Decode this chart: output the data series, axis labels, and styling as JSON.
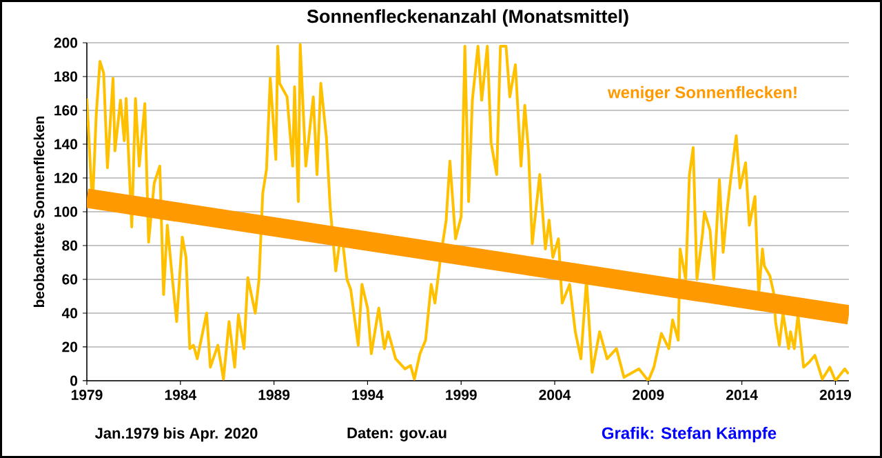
{
  "chart_data": {
    "type": "line",
    "title": "Sonnenfleckenanzahl (Monatsmittel)",
    "ylabel": "beobachtete Sonnenflecken",
    "xlim": [
      1979,
      2019.72
    ],
    "xticks": [
      1979,
      1984,
      1989,
      1994,
      1999,
      2004,
      2009,
      2014,
      2019
    ],
    "ylim": [
      0,
      200
    ],
    "yticks": [
      0,
      20,
      40,
      60,
      80,
      100,
      120,
      140,
      160,
      180,
      200
    ],
    "grid": "y",
    "marker": "none",
    "line_style": "solid",
    "series": [
      {
        "color": "#ffc000",
        "x": [
          1979.0,
          1979.3,
          1979.5,
          1979.7,
          1979.9,
          1980.1,
          1980.4,
          1980.5,
          1980.8,
          1981.0,
          1981.1,
          1981.4,
          1981.6,
          1981.8,
          1982.1,
          1982.3,
          1982.6,
          1982.9,
          1983.1,
          1983.3,
          1983.6,
          1983.8,
          1984.1,
          1984.3,
          1984.5,
          1984.7,
          1984.9,
          1985.4,
          1985.6,
          1986.0,
          1986.3,
          1986.6,
          1986.9,
          1987.1,
          1987.4,
          1987.6,
          1988.0,
          1988.2,
          1988.4,
          1988.6,
          1988.8,
          1989.1,
          1989.2,
          1989.3,
          1989.7,
          1990.0,
          1990.1,
          1990.3,
          1990.4,
          1990.7,
          1991.1,
          1991.3,
          1991.5,
          1991.8,
          1992.0,
          1992.3,
          1992.6,
          1992.9,
          1993.1,
          1993.5,
          1993.7,
          1994.0,
          1994.2,
          1994.6,
          1994.9,
          1995.1,
          1995.5,
          1996.0,
          1996.3,
          1996.5,
          1996.8,
          1997.1,
          1997.4,
          1997.6,
          1997.9,
          1998.2,
          1998.4,
          1998.7,
          1999.0,
          1999.2,
          1999.4,
          1999.6,
          1999.9,
          2000.1,
          2000.4,
          2000.6,
          2000.9,
          2001.1,
          2001.4,
          2001.6,
          2001.9,
          2002.2,
          2002.4,
          2002.6,
          2002.8,
          2003.2,
          2003.5,
          2003.7,
          2003.9,
          2004.2,
          2004.4,
          2004.8,
          2005.1,
          2005.4,
          2005.7,
          2006.0,
          2006.4,
          2006.8,
          2007.3,
          2007.7,
          2008.5,
          2009.0,
          2009.3,
          2009.7,
          2010.1,
          2010.3,
          2010.6,
          2010.7,
          2011.0,
          2011.2,
          2011.4,
          2011.6,
          2011.9,
          2012.0,
          2012.3,
          2012.5,
          2012.8,
          2013.0,
          2013.2,
          2013.4,
          2013.7,
          2013.9,
          2014.2,
          2014.4,
          2014.7,
          2014.9,
          2015.1,
          2015.2,
          2015.5,
          2015.7,
          2015.8,
          2016.0,
          2016.2,
          2016.5,
          2016.6,
          2016.8,
          2017.0,
          2017.3,
          2017.6,
          2017.9,
          2018.3,
          2018.7,
          2019.0,
          2019.5,
          2019.7
        ],
        "values": [
          167,
          103,
          157,
          189,
          182,
          126,
          179,
          136,
          166,
          142,
          167,
          91,
          167,
          127,
          164,
          82,
          117,
          127,
          51,
          92,
          57,
          35,
          85,
          73,
          19,
          21,
          13,
          40,
          8,
          21,
          1,
          35,
          8,
          39,
          19,
          61,
          40,
          60,
          111,
          125,
          179,
          131,
          198,
          176,
          168,
          127,
          174,
          106,
          199,
          127,
          168,
          122,
          176,
          144,
          103,
          65,
          89,
          60,
          54,
          21,
          57,
          43,
          16,
          43,
          19,
          29,
          13,
          7,
          9,
          1,
          16,
          24,
          57,
          46,
          73,
          95,
          130,
          84,
          97,
          198,
          106,
          166,
          198,
          166,
          198,
          141,
          122,
          198,
          198,
          168,
          187,
          127,
          163,
          136,
          81,
          122,
          78,
          95,
          73,
          84,
          46,
          57,
          29,
          13,
          60,
          5,
          29,
          13,
          19,
          2,
          7,
          0,
          8,
          28,
          19,
          36,
          24,
          78,
          60,
          122,
          138,
          60,
          87,
          100,
          89,
          60,
          119,
          76,
          100,
          119,
          145,
          114,
          129,
          92,
          109,
          51,
          78,
          68,
          62,
          52,
          35,
          21,
          40,
          19,
          29,
          19,
          39,
          8,
          11,
          15,
          1,
          8,
          0,
          7,
          4
        ]
      },
      {
        "type": "line",
        "color": "#ff9900",
        "x": [
          1979,
          2019.72
        ],
        "values": [
          108,
          39
        ]
      }
    ],
    "annotations": [
      "weniger Sonnenflecken!",
      "Jan.1979 bis Apr. 2020",
      "Daten: gov.au",
      "Grafik: Stefan Kämpfe"
    ]
  }
}
